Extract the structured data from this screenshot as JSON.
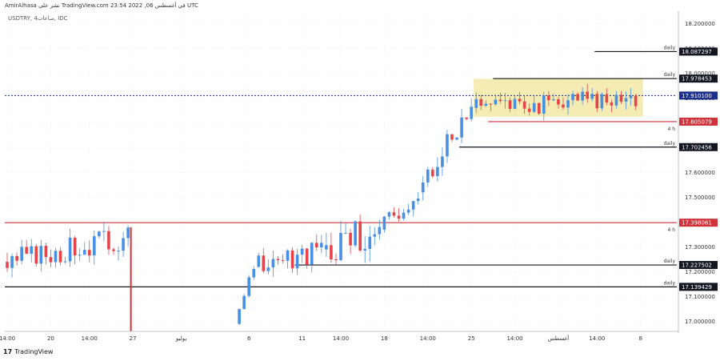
{
  "header": {
    "caption": "AmirAlhasa نشر على TradingView.com في أغسطس 06, 2022 23:54 UTC",
    "symbol": "USDTRY, 4ساعات, IDC"
  },
  "footer": {
    "brand_logo": "17",
    "brand": "TradingView"
  },
  "colors": {
    "up": "#4a90e2",
    "down": "#e5454a",
    "zone_fill": "#f3e9a6",
    "black_level": "#131722",
    "red_level": "#d0323a",
    "current": "#1b2f8a",
    "grid": "#e3e6ee"
  },
  "chart_data": {
    "type": "candlestick",
    "ylim": [
      16.96,
      18.25
    ],
    "y_ticks": [
      17.0,
      17.1,
      17.2,
      17.3,
      17.4,
      17.5,
      17.6,
      17.7,
      17.8,
      17.9,
      18.0,
      18.1,
      18.2
    ],
    "y_tick_labels": [
      "17.000000",
      "17.100000",
      "17.200000",
      "17.300000",
      "17.400000",
      "17.500000",
      "17.600000",
      "17.700000",
      "17.800000",
      "17.900000",
      "18.000000",
      "18.100000",
      "18.200000"
    ],
    "x_ticks": [
      {
        "label": "14:00",
        "t": 0.5
      },
      {
        "label": "20",
        "t": 9.5
      },
      {
        "label": "14:00",
        "t": 17.5
      },
      {
        "label": "27",
        "t": 26.5
      },
      {
        "label": "يوليو",
        "t": 36.5
      },
      {
        "label": "6",
        "t": 50.5
      },
      {
        "label": "11",
        "t": 61.5
      },
      {
        "label": "14:00",
        "t": 69.5
      },
      {
        "label": "18",
        "t": 78.5
      },
      {
        "label": "14:00",
        "t": 87.5
      },
      {
        "label": "25",
        "t": 96.5
      },
      {
        "label": "14:00",
        "t": 105.5
      },
      {
        "label": "أغسطس",
        "t": 114.5
      },
      {
        "label": "14:00",
        "t": 122.5
      },
      {
        "label": "8",
        "t": 131.5
      }
    ],
    "x_range": [
      0,
      139
    ],
    "levels": [
      {
        "value": 18.087297,
        "label": "18.087297",
        "color": "black",
        "tag": "daily",
        "t_start": 122
      },
      {
        "value": 17.978453,
        "label": "17.978453",
        "color": "black",
        "tag": "daily",
        "t_start": 101
      },
      {
        "value": 17.9101,
        "label": "17.910100",
        "color": "current",
        "tag": "",
        "t_start": 0
      },
      {
        "value": 17.805079,
        "label": "17.805079",
        "color": "red",
        "tag": "4 h",
        "t_start": 100
      },
      {
        "value": 17.702456,
        "label": "17.702456",
        "color": "black",
        "tag": "daily",
        "t_start": 94
      },
      {
        "value": 17.398061,
        "label": "17.398061",
        "color": "red",
        "tag": "4 h",
        "t_start": 0
      },
      {
        "value": 17.227502,
        "label": "17.227502",
        "color": "black",
        "tag": "daily",
        "t_start": 60
      },
      {
        "value": 17.139429,
        "label": "17.139429",
        "color": "black",
        "tag": "daily",
        "t_start": 0
      }
    ],
    "zone": {
      "t_start": 97,
      "t_end": 132,
      "y_low": 17.825,
      "y_high": 17.978
    },
    "red_drop": {
      "t": 26,
      "y_top": 17.38,
      "y_bottom": 16.96
    },
    "segments": [
      {
        "t0": 0,
        "t1": 26,
        "start": 17.24,
        "end": 17.34,
        "amp": 0.05,
        "seed": 3
      },
      {
        "t0": 48,
        "t1": 52,
        "start": 16.99,
        "end": 17.22,
        "amp": 0.02,
        "seed": 7
      },
      {
        "t0": 52,
        "t1": 66,
        "start": 17.22,
        "end": 17.29,
        "amp": 0.05,
        "seed": 11
      },
      {
        "t0": 66,
        "t1": 78,
        "start": 17.29,
        "end": 17.37,
        "amp": 0.07,
        "seed": 13
      },
      {
        "t0": 78,
        "t1": 86,
        "start": 17.37,
        "end": 17.52,
        "amp": 0.04,
        "seed": 17
      },
      {
        "t0": 86,
        "t1": 97,
        "start": 17.52,
        "end": 17.86,
        "amp": 0.05,
        "seed": 19
      },
      {
        "t0": 97,
        "t1": 131,
        "start": 17.86,
        "end": 17.9,
        "amp": 0.04,
        "seed": 23
      }
    ]
  }
}
